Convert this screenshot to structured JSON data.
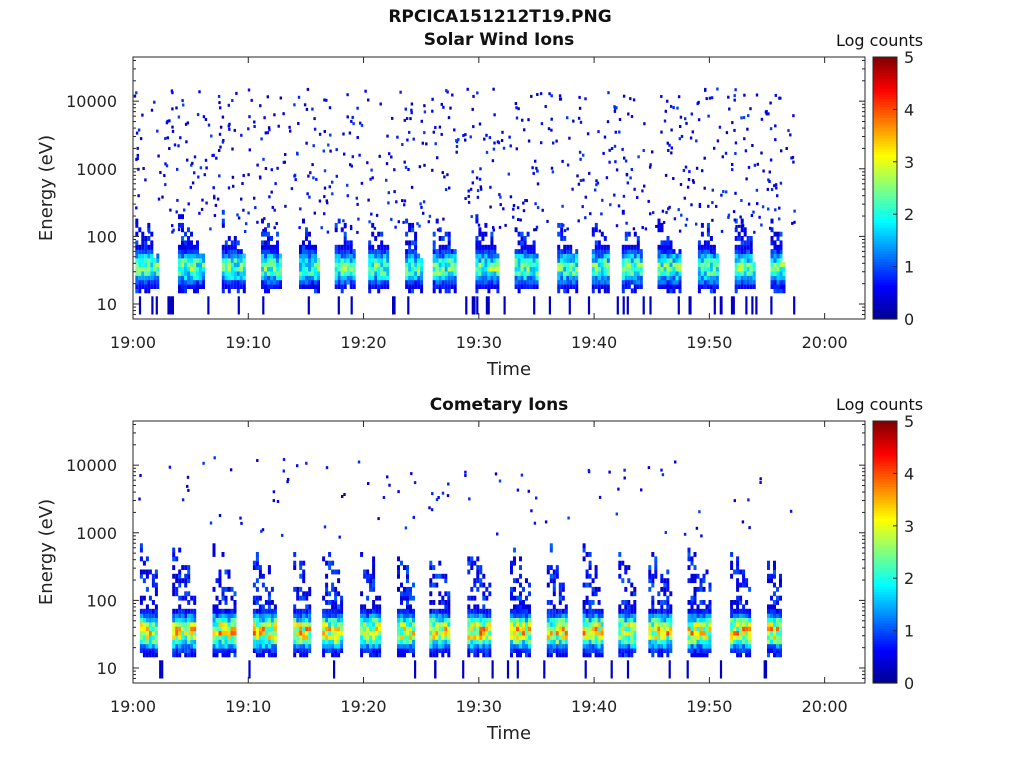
{
  "figure": {
    "title": "RPCICA151212T19.PNG"
  },
  "colormap": {
    "name": "jet",
    "stops": [
      "#00008f",
      "#0000ff",
      "#0080ff",
      "#00ffff",
      "#80ff80",
      "#ffff00",
      "#ff8000",
      "#ff0000",
      "#800000"
    ]
  },
  "chart_data": [
    {
      "type": "heatmap",
      "title": "Solar Wind Ions",
      "xlabel": "Time",
      "ylabel": "Energy (eV)",
      "x_ticks": [
        "19:00",
        "19:10",
        "19:20",
        "19:30",
        "19:40",
        "19:50",
        "20:00"
      ],
      "x_tick_minutes": [
        0,
        10,
        20,
        30,
        40,
        50,
        60
      ],
      "xlim_minutes": [
        0,
        63.5
      ],
      "y_scale": "log",
      "y_ticks": [
        "10",
        "100",
        "1000",
        "10000"
      ],
      "y_tick_values": [
        10,
        100,
        1000,
        10000
      ],
      "ylim": [
        6,
        45000
      ],
      "colorbar": {
        "label": "Log counts",
        "ticks": [
          "0",
          "1",
          "2",
          "3",
          "4",
          "5"
        ],
        "range": [
          0,
          5
        ]
      },
      "data_end_minute": 57.3,
      "sweep_starts_minutes": [
        0.2,
        3.9,
        7.7,
        11.1,
        14.4,
        17.5,
        20.4,
        23.6,
        26.0,
        29.7,
        33.1,
        36.8,
        39.8,
        42.4,
        45.5,
        49.0,
        52.2,
        55.3
      ],
      "band": {
        "core_energy_eV": 35,
        "peak_log_counts": 2.6,
        "tail_max_energy_eV": 200
      },
      "background_max_energy_eV": 16000
    },
    {
      "type": "heatmap",
      "title": "Cometary Ions",
      "xlabel": "Time",
      "ylabel": "Energy (eV)",
      "x_ticks": [
        "19:00",
        "19:10",
        "19:20",
        "19:30",
        "19:40",
        "19:50",
        "20:00"
      ],
      "x_tick_minutes": [
        0,
        10,
        20,
        30,
        40,
        50,
        60
      ],
      "xlim_minutes": [
        0,
        63.5
      ],
      "y_scale": "log",
      "y_ticks": [
        "10",
        "100",
        "1000",
        "10000"
      ],
      "y_tick_values": [
        10,
        100,
        1000,
        10000
      ],
      "ylim": [
        6,
        45000
      ],
      "colorbar": {
        "label": "Log counts",
        "ticks": [
          "0",
          "1",
          "2",
          "3",
          "4",
          "5"
        ],
        "range": [
          0,
          5
        ]
      },
      "data_end_minute": 57.3,
      "sweep_starts_minutes": [
        0.6,
        3.4,
        6.9,
        10.4,
        13.9,
        16.4,
        19.7,
        22.9,
        25.7,
        29.0,
        32.7,
        35.9,
        39.0,
        42.1,
        44.7,
        48.1,
        51.8,
        55.0
      ],
      "band": {
        "core_energy_eV": 35,
        "peak_log_counts": 3.6,
        "tail_max_energy_eV": 600
      },
      "background_max_energy_eV": 14000
    }
  ]
}
